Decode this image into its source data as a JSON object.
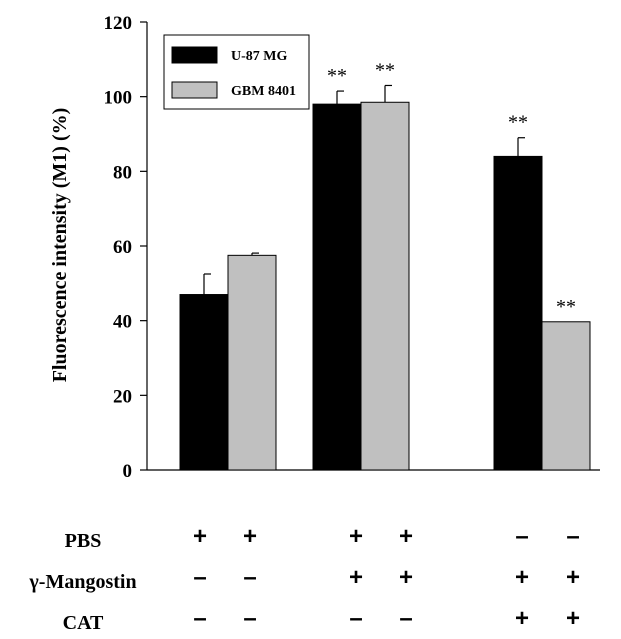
{
  "chart_data": {
    "type": "bar",
    "title": "",
    "xlabel": "",
    "ylabel": "Fluorescence intensity (M1) (%)",
    "ylim": [
      0,
      120
    ],
    "yticks": [
      0,
      20,
      40,
      60,
      80,
      100,
      120
    ],
    "grid": false,
    "legend_position": "top-left",
    "categories": [
      "PBS",
      "γ-Mangostin",
      "γ-Mangostin + CAT"
    ],
    "series": [
      {
        "name": "U-87 MG",
        "color": "#000000",
        "values": [
          47,
          98,
          84
        ],
        "errors": [
          5.5,
          3.5,
          5
        ],
        "significance": [
          "",
          "**",
          "**"
        ]
      },
      {
        "name": "GBM 8401",
        "color": "#c0c0c0",
        "values": [
          57.5,
          98.5,
          39.7
        ],
        "errors": [
          0.6,
          4.5,
          0
        ],
        "significance": [
          "",
          "**",
          "**"
        ]
      }
    ],
    "conditions": [
      {
        "label": "PBS",
        "signs": [
          "+",
          "+",
          "+",
          "+",
          "–",
          "–"
        ]
      },
      {
        "label": "γ-Mangostin",
        "signs": [
          "–",
          "–",
          "+",
          "+",
          "+",
          "+"
        ]
      },
      {
        "label": "CAT",
        "signs": [
          "–",
          "–",
          "–",
          "–",
          "+",
          "+"
        ]
      }
    ]
  }
}
